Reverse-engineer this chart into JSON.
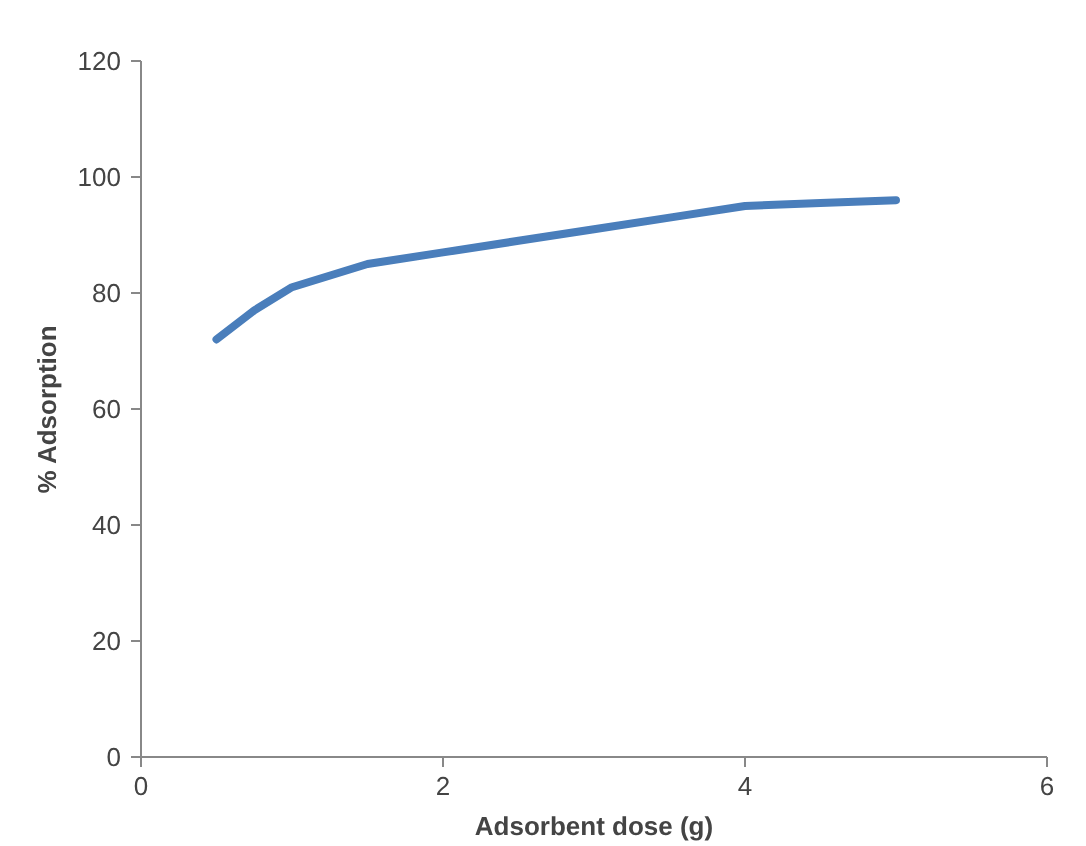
{
  "chart_data": {
    "type": "line",
    "xlabel": "Adsorbent dose (g)",
    "ylabel": "% Adsorption",
    "x": [
      0.5,
      0.75,
      1,
      1.5,
      2,
      2.5,
      3,
      3.5,
      4,
      4.5,
      5
    ],
    "series": [
      {
        "color": "#4a7ebb",
        "values": [
          72,
          77,
          81,
          85,
          87,
          89,
          91,
          93,
          95,
          95.5,
          96
        ]
      }
    ],
    "xlim": [
      0,
      6
    ],
    "xticks": [
      0,
      2,
      4,
      6
    ],
    "ylim": [
      0,
      120
    ],
    "yticks": [
      0,
      20,
      40,
      60,
      80,
      100,
      120
    ],
    "grid": false,
    "marker": "none",
    "line_style": "solid"
  }
}
